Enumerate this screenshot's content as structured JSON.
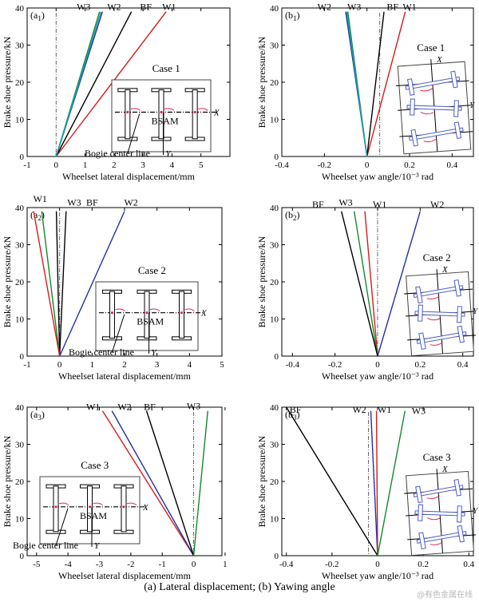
{
  "figure_caption": "(a) Lateral displacement; (b) Yawing angle",
  "watermark": "@有色金属在线",
  "colors": {
    "W1": "#d81b1b",
    "W2": "#2030a8",
    "W3": "#128a2a",
    "W3_cyan": "#1aa0b4",
    "BF": "#000000",
    "bsam_arrow": "#e0285a",
    "inset_wheelset": "#4a5cc8"
  },
  "inset_labels": {
    "bsam": "BSAM",
    "bogie_center_line": "Bogie center line",
    "x_axis": "X",
    "y_axis": "Y"
  },
  "chart_data": [
    {
      "id": "a1",
      "type": "line",
      "panel_label": "(a1)",
      "case_label": "Case 1",
      "xlabel": "Wheelset lateral displacement/mm",
      "ylabel": "Brake shoe pressure/kN",
      "xlim": [
        -1,
        6
      ],
      "ylim": [
        0,
        40
      ],
      "xticks": [
        -1,
        0,
        1,
        2,
        3,
        4,
        5
      ],
      "yticks": [
        0,
        10,
        20,
        30,
        40
      ],
      "zero_line": 0,
      "series": [
        {
          "name": "W1",
          "color": "#d81b1b",
          "x": [
            0,
            3.8
          ],
          "y": [
            0,
            39
          ],
          "label_at": [
            3.9,
            39.5
          ]
        },
        {
          "name": "BF",
          "color": "#000000",
          "x": [
            0,
            2.6
          ],
          "y": [
            0,
            39
          ],
          "label_at": [
            3.1,
            39.5
          ]
        },
        {
          "name": "W2",
          "color": "#2030a8",
          "x": [
            0,
            1.6
          ],
          "y": [
            0,
            39
          ],
          "label_at": [
            2.0,
            39.5
          ]
        },
        {
          "name": "W3",
          "color": "#128a2a",
          "x": [
            0,
            1.5
          ],
          "y": [
            0,
            39
          ],
          "label_at": [
            0.95,
            39.5
          ]
        },
        {
          "name": "",
          "color": "#1aa0b4",
          "x": [
            0,
            1.55
          ],
          "y": [
            0,
            39
          ]
        }
      ]
    },
    {
      "id": "b1",
      "type": "line",
      "panel_label": "(b1)",
      "case_label": "Case 1",
      "xlabel": "Wheelset yaw angle/10⁻³ rad",
      "ylabel": "Brake shoe pressure/kN",
      "xlim": [
        -0.4,
        0.5
      ],
      "ylim": [
        0,
        40
      ],
      "xticks": [
        -0.4,
        -0.2,
        0,
        0.2,
        0.4
      ],
      "yticks": [
        0,
        10,
        20,
        30,
        40
      ],
      "zero_line": 0.06,
      "series": [
        {
          "name": "W1",
          "color": "#d81b1b",
          "x": [
            0,
            0.18
          ],
          "y": [
            0,
            39
          ],
          "label_at": [
            0.2,
            39.5
          ]
        },
        {
          "name": "BF",
          "color": "#000000",
          "x": [
            0,
            0.08
          ],
          "y": [
            0,
            39
          ],
          "label_at": [
            0.12,
            39.5
          ]
        },
        {
          "name": "W3",
          "color": "#128a2a",
          "x": [
            0,
            -0.09
          ],
          "y": [
            0,
            39
          ],
          "label_at": [
            -0.06,
            39.5
          ]
        },
        {
          "name": "W2",
          "color": "#2030a8",
          "x": [
            0,
            -0.1
          ],
          "y": [
            0,
            39
          ],
          "label_at": [
            -0.2,
            39.5
          ]
        },
        {
          "name": "",
          "color": "#1aa0b4",
          "x": [
            0,
            -0.095
          ],
          "y": [
            0,
            39
          ]
        }
      ]
    },
    {
      "id": "a2",
      "type": "line",
      "panel_label": "(a2)",
      "case_label": "Case 2",
      "xlabel": "Wheelset lateral displacement/mm",
      "ylabel": "Brake shoe pressure/kN",
      "xlim": [
        -1,
        5
      ],
      "ylim": [
        0,
        40
      ],
      "xticks": [
        -1,
        0,
        1,
        2,
        3,
        4,
        5
      ],
      "yticks": [
        0,
        10,
        20,
        30,
        40
      ],
      "zero_line": 0,
      "series": [
        {
          "name": "W2",
          "color": "#2030a8",
          "x": [
            0,
            2.0
          ],
          "y": [
            0,
            39
          ],
          "label_at": [
            2.2,
            40.5
          ]
        },
        {
          "name": "BF",
          "color": "#000000",
          "x": [
            0,
            0.2
          ],
          "y": [
            0,
            39
          ],
          "label_at": [
            1.0,
            40.5
          ]
        },
        {
          "name": "W3",
          "color": "#000000",
          "x": [
            0,
            -0.1
          ],
          "y": [
            0,
            39
          ],
          "label_at": [
            0.45,
            40.5
          ]
        },
        {
          "name": "W1",
          "color": "#128a2a",
          "x": [
            0,
            -0.55
          ],
          "y": [
            0,
            39
          ],
          "label_at": [
            -0.6,
            41.5
          ]
        },
        {
          "name": "",
          "color": "#d81b1b",
          "x": [
            0,
            -0.8
          ],
          "y": [
            0,
            39
          ]
        }
      ]
    },
    {
      "id": "b2",
      "type": "line",
      "panel_label": "(b2)",
      "case_label": "Case 2",
      "xlabel": "Wheelset yaw angle/10⁻³ rad",
      "ylabel": "Brake shoe pressure/kN",
      "xlim": [
        -0.45,
        0.45
      ],
      "ylim": [
        0,
        40
      ],
      "xticks": [
        -0.4,
        -0.2,
        0,
        0.2,
        0.4
      ],
      "yticks": [
        0,
        10,
        20,
        30,
        40
      ],
      "zero_line": 0,
      "series": [
        {
          "name": "W2",
          "color": "#2030a8",
          "x": [
            0,
            0.2
          ],
          "y": [
            0,
            39
          ],
          "label_at": [
            0.28,
            40
          ]
        },
        {
          "name": "W1",
          "color": "#d81b1b",
          "x": [
            0,
            -0.06
          ],
          "y": [
            0,
            39
          ],
          "label_at": [
            0.01,
            40
          ]
        },
        {
          "name": "W3",
          "color": "#128a2a",
          "x": [
            0,
            -0.11
          ],
          "y": [
            0,
            39
          ],
          "label_at": [
            -0.15,
            40.5
          ]
        },
        {
          "name": "BF",
          "color": "#000000",
          "x": [
            0,
            -0.17
          ],
          "y": [
            0,
            39
          ],
          "label_at": [
            -0.28,
            40
          ]
        }
      ]
    },
    {
      "id": "a3",
      "type": "line",
      "panel_label": "(a3)",
      "case_label": "Case 3",
      "xlabel": "Wheelset lateral displacement/mm",
      "ylabel": "Brake shoe pressure/kN",
      "xlim": [
        -5.3,
        0.9
      ],
      "ylim": [
        0,
        40
      ],
      "xticks": [
        -5,
        -4,
        -3,
        -2,
        -1,
        0,
        1
      ],
      "yticks": [
        0,
        10,
        20,
        30,
        40
      ],
      "zero_line": 0,
      "series": [
        {
          "name": "W1",
          "color": "#d81b1b",
          "x": [
            0,
            -2.9
          ],
          "y": [
            0,
            39
          ],
          "label_at": [
            -3.2,
            39.2
          ]
        },
        {
          "name": "W2",
          "color": "#2030a8",
          "x": [
            0,
            -2.6
          ],
          "y": [
            0,
            39
          ],
          "label_at": [
            -2.2,
            39.2
          ]
        },
        {
          "name": "BF",
          "color": "#000000",
          "x": [
            0,
            -1.5
          ],
          "y": [
            0,
            39
          ],
          "label_at": [
            -1.4,
            39.2
          ]
        },
        {
          "name": "W3",
          "color": "#128a2a",
          "x": [
            0,
            0.45
          ],
          "y": [
            0,
            39
          ],
          "label_at": [
            0.0,
            39.5
          ]
        }
      ]
    },
    {
      "id": "b3",
      "type": "line",
      "panel_label": "(b3)",
      "case_label": "Case 3",
      "xlabel": "Wheelset yaw angle/10⁻³ rad",
      "ylabel": "Brake shoe pressure/kN",
      "xlim": [
        -0.42,
        0.42
      ],
      "ylim": [
        0,
        40
      ],
      "xticks": [
        -0.4,
        -0.2,
        0,
        0.2,
        0.4
      ],
      "yticks": [
        0,
        10,
        20,
        30,
        40
      ],
      "zero_line": -0.04,
      "series": [
        {
          "name": "BF",
          "color": "#000000",
          "x": [
            0,
            -0.4
          ],
          "y": [
            0,
            40
          ],
          "label_at": [
            -0.36,
            38.5
          ]
        },
        {
          "name": "W2",
          "color": "#2030a8",
          "x": [
            0,
            -0.03
          ],
          "y": [
            0,
            39
          ],
          "label_at": [
            -0.08,
            38.5
          ]
        },
        {
          "name": "W1",
          "color": "#d81b1b",
          "x": [
            0,
            -0.005
          ],
          "y": [
            0,
            39
          ],
          "label_at": [
            0.03,
            38.5
          ]
        },
        {
          "name": "W3",
          "color": "#128a2a",
          "x": [
            0,
            0.12
          ],
          "y": [
            0,
            39
          ],
          "label_at": [
            0.18,
            38.2
          ]
        }
      ]
    }
  ]
}
